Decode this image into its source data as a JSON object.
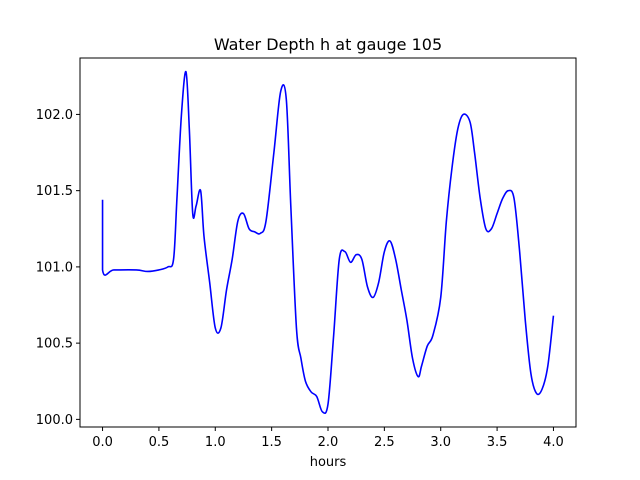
{
  "chart_data": {
    "type": "line",
    "title": "Water Depth h at gauge 105",
    "xlabel": "hours",
    "ylabel": "",
    "xlim": [
      -0.2,
      4.2
    ],
    "ylim": [
      99.95,
      102.37
    ],
    "xticks": [
      0.0,
      0.5,
      1.0,
      1.5,
      2.0,
      2.5,
      3.0,
      3.5,
      4.0
    ],
    "xtick_labels": [
      "0.0",
      "0.5",
      "1.0",
      "1.5",
      "2.0",
      "2.5",
      "3.0",
      "3.5",
      "4.0"
    ],
    "yticks": [
      100.0,
      100.5,
      101.0,
      101.5,
      102.0
    ],
    "ytick_labels": [
      "100.0",
      "100.5",
      "101.0",
      "101.5",
      "102.0"
    ],
    "grid": false,
    "series": [
      {
        "color": "#0000ff",
        "x": [
          0.0,
          0.0,
          0.1,
          0.3,
          0.4,
          0.5,
          0.58,
          0.63,
          0.66,
          0.7,
          0.74,
          0.77,
          0.8,
          0.83,
          0.87,
          0.9,
          0.95,
          1.0,
          1.05,
          1.1,
          1.15,
          1.2,
          1.25,
          1.3,
          1.35,
          1.4,
          1.45,
          1.52,
          1.58,
          1.63,
          1.67,
          1.72,
          1.76,
          1.8,
          1.85,
          1.9,
          1.95,
          2.0,
          2.05,
          2.1,
          2.15,
          2.2,
          2.25,
          2.3,
          2.35,
          2.4,
          2.45,
          2.5,
          2.55,
          2.6,
          2.65,
          2.7,
          2.75,
          2.8,
          2.83,
          2.88,
          2.93,
          3.0,
          3.05,
          3.1,
          3.15,
          3.2,
          3.26,
          3.3,
          3.35,
          3.4,
          3.45,
          3.5,
          3.55,
          3.6,
          3.65,
          3.7,
          3.75,
          3.8,
          3.85,
          3.9,
          3.95,
          4.0
        ],
        "y": [
          101.44,
          100.98,
          100.98,
          100.98,
          100.97,
          100.98,
          101.0,
          101.05,
          101.45,
          102.0,
          102.28,
          101.9,
          101.35,
          101.4,
          101.5,
          101.2,
          100.9,
          100.6,
          100.6,
          100.85,
          101.05,
          101.3,
          101.35,
          101.25,
          101.23,
          101.22,
          101.3,
          101.75,
          102.15,
          102.1,
          101.4,
          100.6,
          100.4,
          100.25,
          100.18,
          100.15,
          100.05,
          100.1,
          100.55,
          101.05,
          101.1,
          101.03,
          101.08,
          101.05,
          100.87,
          100.8,
          100.9,
          101.1,
          101.17,
          101.05,
          100.85,
          100.65,
          100.4,
          100.28,
          100.35,
          100.48,
          100.55,
          100.8,
          101.3,
          101.65,
          101.9,
          102.0,
          101.95,
          101.75,
          101.45,
          101.25,
          101.25,
          101.35,
          101.45,
          101.5,
          101.45,
          101.1,
          100.65,
          100.3,
          100.17,
          100.2,
          100.35,
          100.68
        ]
      }
    ]
  }
}
